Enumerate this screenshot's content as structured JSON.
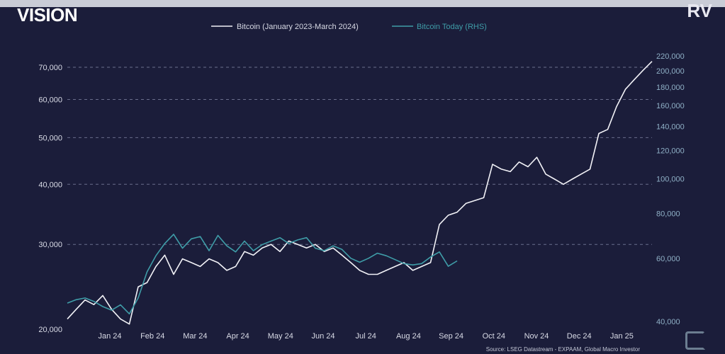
{
  "header": {
    "brand": "VISION",
    "corner_mark": "RV"
  },
  "source": "Source: LSEG Datastream - EXPAAM, Global Macro Investor",
  "colors": {
    "background": "#1b1d3a",
    "series_white": "#f2f2f7",
    "series_teal": "#3f9da8",
    "grid": "#6b6e8c"
  },
  "chart_data": {
    "type": "line",
    "x_categories": [
      "Jan 24",
      "Feb 24",
      "Mar 24",
      "Apr 24",
      "May 24",
      "Jun 24",
      "Jul 24",
      "Aug 24",
      "Sep 24",
      "Oct 24",
      "Nov 24",
      "Dec 24",
      "Jan 25"
    ],
    "y_left": {
      "scale": "log",
      "ticks": [
        20000,
        30000,
        40000,
        50000,
        60000,
        70000
      ],
      "tick_labels": [
        "20,000",
        "30,000",
        "40,000",
        "50,000",
        "60,000",
        "70,000"
      ],
      "range": [
        20000,
        72000
      ]
    },
    "y_right": {
      "scale": "log",
      "ticks": [
        40000,
        60000,
        80000,
        100000,
        120000,
        140000,
        160000,
        180000,
        200000,
        220000
      ],
      "tick_labels": [
        "40,000",
        "60,000",
        "80,000",
        "100,000",
        "120,000",
        "140,000",
        "160,000",
        "180,000",
        "200,000",
        "220,000"
      ],
      "range": [
        40000,
        220000
      ]
    },
    "grid": "horizontal dashed",
    "legend": "top-center",
    "series": [
      {
        "name": "Bitcoin (January 2023-March 2024)",
        "axis": "left",
        "x": [
          0,
          0.2,
          0.4,
          0.6,
          0.8,
          1.0,
          1.2,
          1.4,
          1.6,
          1.8,
          2.0,
          2.2,
          2.4,
          2.6,
          2.8,
          3.0,
          3.2,
          3.4,
          3.6,
          3.8,
          4.0,
          4.2,
          4.4,
          4.6,
          4.8,
          5.0,
          5.2,
          5.4,
          5.6,
          5.8,
          6.0,
          6.2,
          6.4,
          6.6,
          6.8,
          7.0,
          7.2,
          7.4,
          7.6,
          7.8,
          8.0,
          8.2,
          8.4,
          8.6,
          8.8,
          9.0,
          9.2,
          9.4,
          9.6,
          9.8,
          10.0,
          10.2,
          10.4,
          10.6,
          10.8,
          11.0,
          11.2,
          11.4,
          11.6,
          11.8,
          12.0,
          12.2,
          12.4,
          12.6,
          12.8,
          13.0,
          13.2
        ],
        "values": [
          21000,
          22000,
          23000,
          22500,
          23500,
          22000,
          21000,
          20500,
          24500,
          25000,
          27000,
          28500,
          26000,
          28000,
          27500,
          27000,
          28000,
          27500,
          26500,
          27000,
          29000,
          28500,
          29500,
          30000,
          29000,
          30500,
          30000,
          29500,
          30000,
          29000,
          29500,
          28500,
          27500,
          26500,
          26000,
          26000,
          26500,
          27000,
          27500,
          26500,
          27000,
          27500,
          33000,
          34500,
          35000,
          36500,
          37000,
          37500,
          44000,
          43000,
          42500,
          44500,
          43500,
          45500,
          42000,
          41000,
          40000,
          41000,
          42000,
          43000,
          51000,
          52000,
          58000,
          63000,
          66000,
          69000,
          72000
        ],
        "note": "read off left axis"
      },
      {
        "name": "Bitcoin Today (RHS)",
        "axis": "right",
        "x": [
          0,
          0.2,
          0.4,
          0.6,
          0.8,
          1.0,
          1.2,
          1.4,
          1.6,
          1.8,
          2.0,
          2.2,
          2.4,
          2.6,
          2.8,
          3.0,
          3.2,
          3.4,
          3.6,
          3.8,
          4.0,
          4.2,
          4.4,
          4.6,
          4.8,
          5.0,
          5.2,
          5.4,
          5.6,
          5.8,
          6.0,
          6.2,
          6.4,
          6.6,
          6.8,
          7.0,
          7.2,
          7.4,
          7.6,
          7.8,
          8.0,
          8.2,
          8.4,
          8.6,
          8.8
        ],
        "values": [
          45000,
          46000,
          46500,
          45500,
          44000,
          43000,
          44500,
          42000,
          46500,
          55000,
          61000,
          66000,
          70000,
          64000,
          68000,
          69000,
          63000,
          69500,
          65000,
          62500,
          67000,
          63000,
          65500,
          67000,
          68500,
          66000,
          67500,
          68500,
          64000,
          63000,
          65000,
          63500,
          60000,
          58500,
          60000,
          62000,
          61000,
          59500,
          58000,
          57500,
          58000,
          60500,
          62500,
          57000,
          59000
        ],
        "note": "read off right axis"
      }
    ]
  }
}
